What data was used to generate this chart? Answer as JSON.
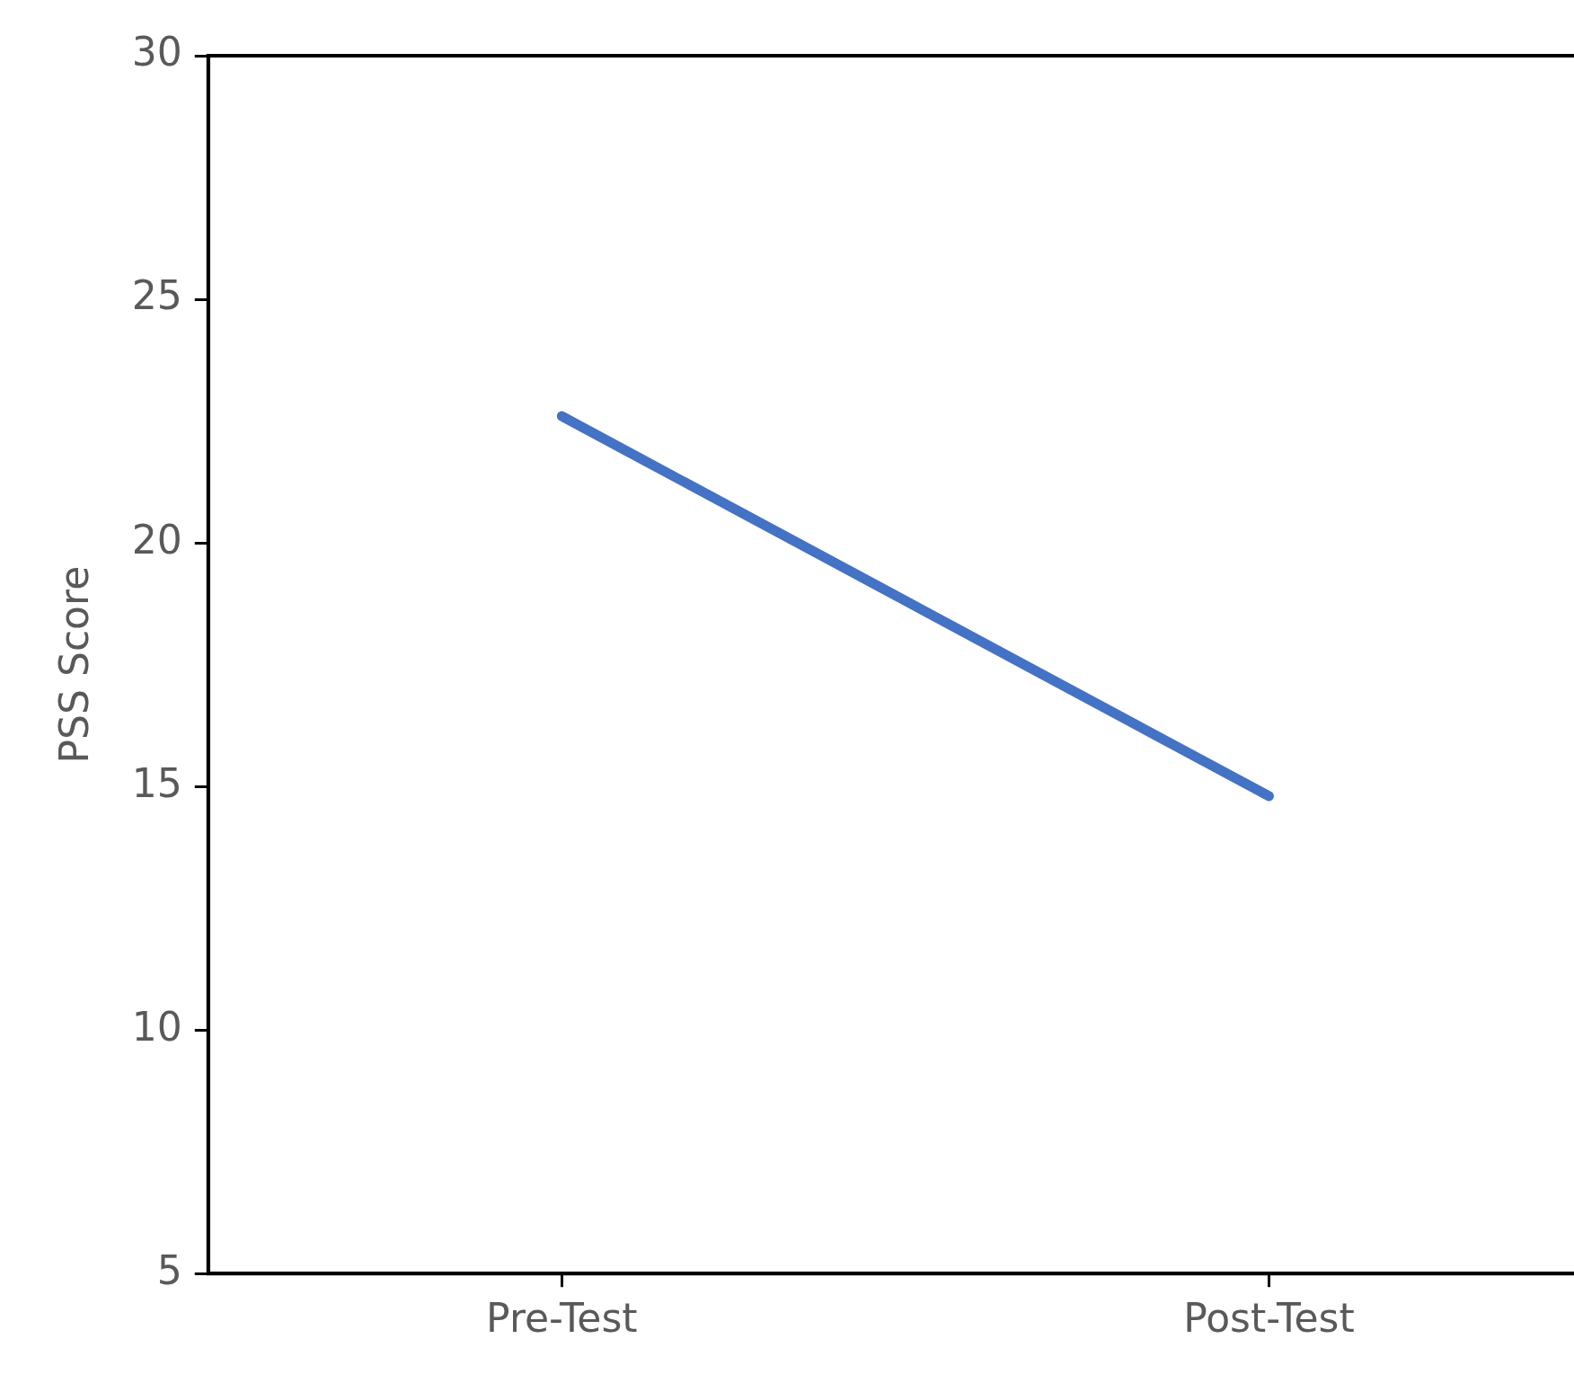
{
  "chart_data": {
    "type": "line",
    "ylabel": "PSS Score",
    "categories": [
      "Pre-Test",
      "Post-Test"
    ],
    "series": [
      {
        "color": "#4472c4",
        "values": [
          22.6,
          14.8
        ]
      }
    ],
    "ylim": [
      5,
      30
    ],
    "yticks": [
      5,
      10,
      15,
      20,
      25,
      30
    ],
    "grid": false,
    "legend": false,
    "marker": "none",
    "line_style": "solid"
  }
}
